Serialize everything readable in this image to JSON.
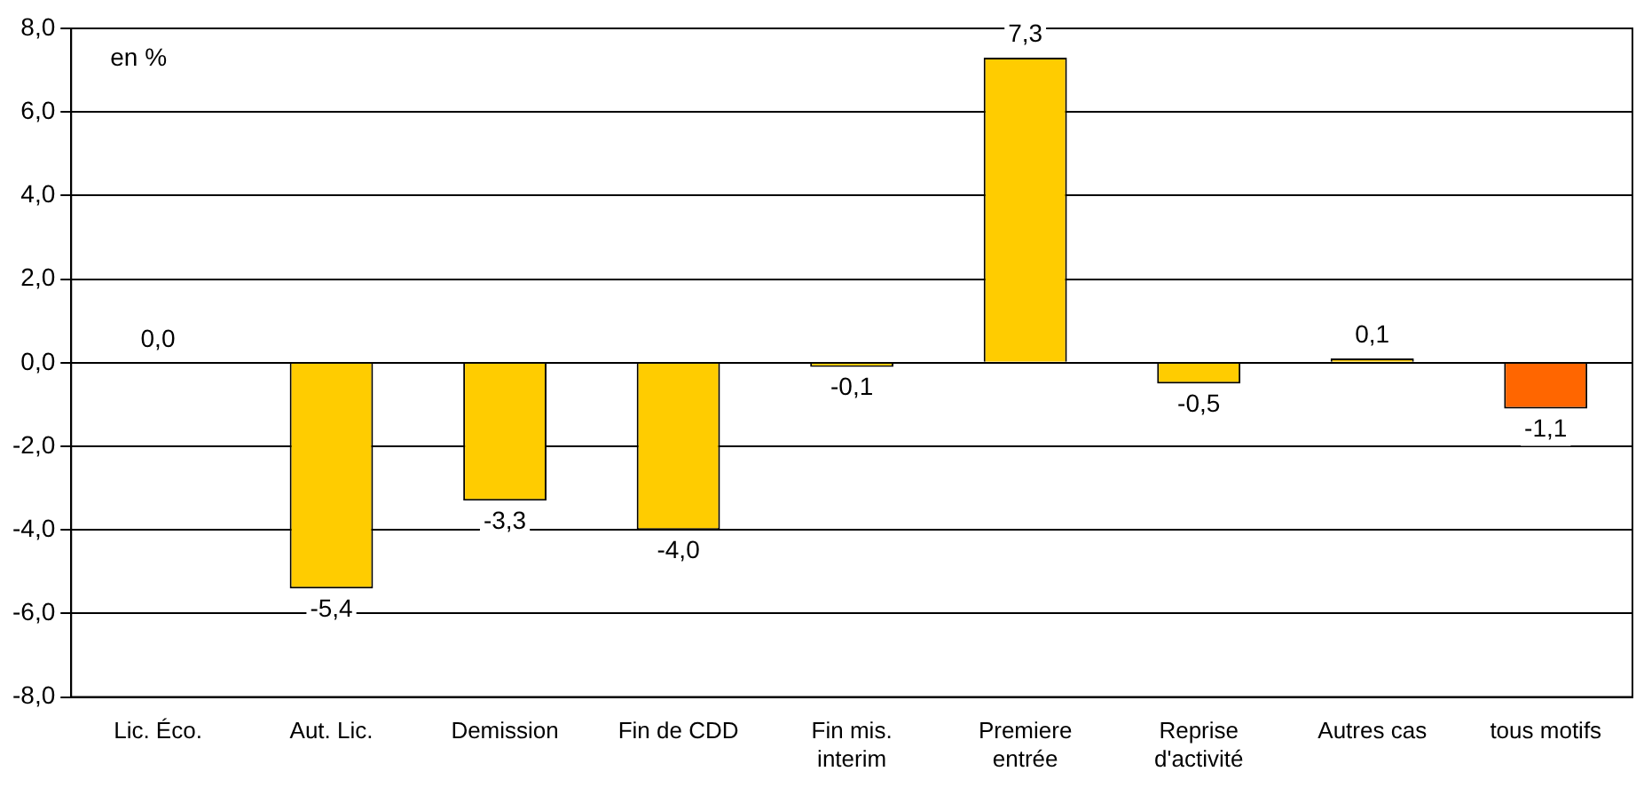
{
  "chart_data": {
    "type": "bar",
    "ylabel": "en %",
    "categories": [
      "Lic. Éco.",
      "Aut. Lic.",
      "Demission",
      "Fin de CDD",
      "Fin mis. interim",
      "Premiere entrée",
      "Reprise d'activité",
      "Autres cas",
      "tous motifs"
    ],
    "values": [
      0.0,
      -5.4,
      -3.3,
      -4.0,
      -0.1,
      7.3,
      -0.5,
      0.1,
      -1.1
    ],
    "value_labels": [
      "0,0",
      "-5,4",
      "-3,3",
      "-4,0",
      "-0,1",
      "7,3",
      "-0,5",
      "0,1",
      "-1,1"
    ],
    "colors": [
      "#ffcc00",
      "#ffcc00",
      "#ffcc00",
      "#ffcc00",
      "#ffcc00",
      "#ffcc00",
      "#ffcc00",
      "#ffcc00",
      "#ff6600"
    ],
    "ylim": [
      -8,
      8
    ],
    "yticks": [
      {
        "value": -8,
        "label": "-8,0"
      },
      {
        "value": -6,
        "label": "-6,0"
      },
      {
        "value": -4,
        "label": "-4,0"
      },
      {
        "value": -2,
        "label": "-2,0"
      },
      {
        "value": 0,
        "label": "0,0"
      },
      {
        "value": 2,
        "label": "2,0"
      },
      {
        "value": 4,
        "label": "4,0"
      },
      {
        "value": 6,
        "label": "6,0"
      },
      {
        "value": 8,
        "label": "8,0"
      }
    ],
    "grid": "y",
    "legend": false
  }
}
